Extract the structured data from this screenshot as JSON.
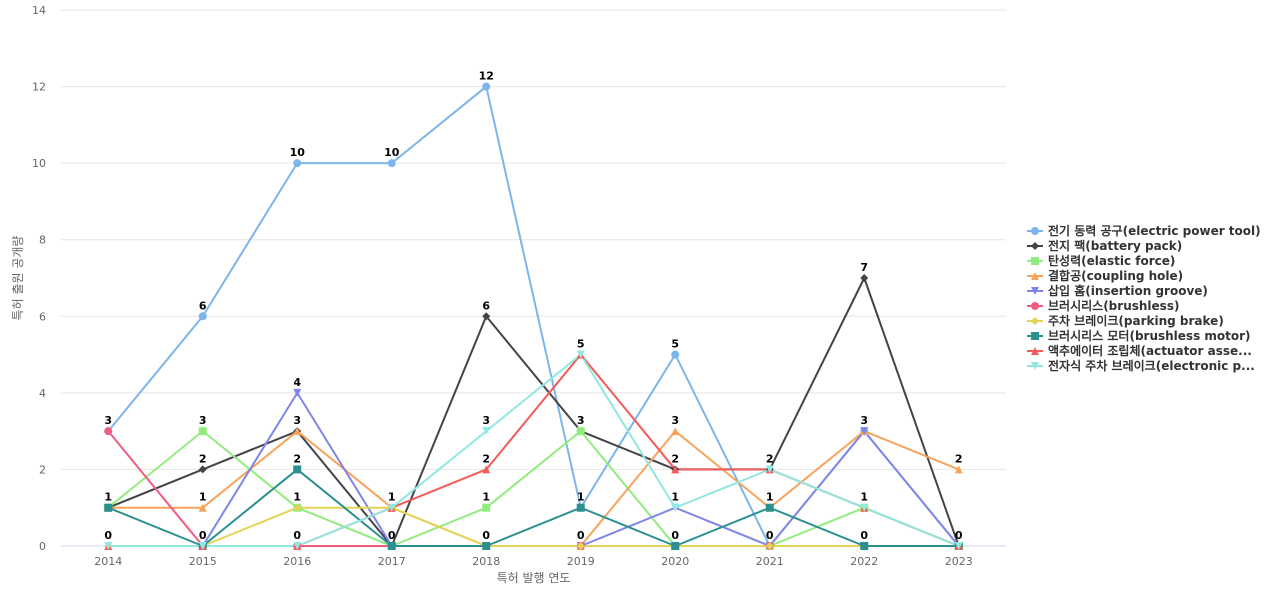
{
  "chart_data": {
    "type": "line",
    "title": "",
    "xlabel": "특허 발행 연도",
    "ylabel": "특허 출원 공개량",
    "ylim": [
      0,
      14
    ],
    "y_ticks": [
      0,
      2,
      4,
      6,
      8,
      10,
      12,
      14
    ],
    "grid": true,
    "legend_position": "right",
    "categories": [
      "2014",
      "2015",
      "2016",
      "2017",
      "2018",
      "2019",
      "2020",
      "2021",
      "2022",
      "2023"
    ],
    "series": [
      {
        "name": "전기 동력 공구(electric power tool)",
        "values": [
          3,
          6,
          10,
          10,
          12,
          1,
          5,
          0,
          3,
          0
        ],
        "color": "#7cb5ec",
        "marker": "circle"
      },
      {
        "name": "전지 팩(battery pack)",
        "values": [
          1,
          2,
          3,
          0,
          6,
          3,
          2,
          2,
          7,
          0
        ],
        "color": "#434348",
        "marker": "diamond"
      },
      {
        "name": "탄성력(elastic force)",
        "values": [
          1,
          3,
          1,
          0,
          1,
          3,
          0,
          0,
          1,
          0
        ],
        "color": "#90ed7d",
        "marker": "square"
      },
      {
        "name": "결합공(coupling hole)",
        "values": [
          1,
          1,
          3,
          1,
          0,
          0,
          3,
          1,
          3,
          2
        ],
        "color": "#f7a35c",
        "marker": "triangle"
      },
      {
        "name": "삽입 홈(insertion groove)",
        "values": [
          0,
          0,
          4,
          0,
          0,
          0,
          1,
          0,
          3,
          0
        ],
        "color": "#8085e9",
        "marker": "triangle-down"
      },
      {
        "name": "브러시리스(brushless)",
        "values": [
          3,
          0,
          0,
          0,
          0,
          0,
          0,
          0,
          0,
          0
        ],
        "color": "#f15c80",
        "marker": "circle"
      },
      {
        "name": "주차 브레이크(parking brake)",
        "values": [
          0,
          0,
          1,
          1,
          0,
          0,
          0,
          0,
          0,
          0
        ],
        "color": "#e4d354",
        "marker": "diamond"
      },
      {
        "name": "브러시리스 모터(brushless motor)",
        "values": [
          1,
          0,
          2,
          0,
          0,
          1,
          0,
          1,
          0,
          0
        ],
        "color": "#2b908f",
        "marker": "square"
      },
      {
        "name": "액추에이터 조립체(actuator assembly)",
        "values": [
          0,
          0,
          0,
          1,
          2,
          5,
          2,
          2,
          1,
          0
        ],
        "color": "#f45b5b",
        "marker": "triangle"
      },
      {
        "name": "전자식 주차 브레이크(electronic parking brake)",
        "values": [
          0,
          0,
          0,
          1,
          3,
          5,
          1,
          2,
          1,
          0
        ],
        "color": "#91e8e1",
        "marker": "triangle-down"
      }
    ],
    "point_labels": [
      {
        "x": "2014",
        "text": "3",
        "value": 3
      },
      {
        "x": "2014",
        "text": "1",
        "value": 1
      },
      {
        "x": "2014",
        "text": "0",
        "value": 0
      },
      {
        "x": "2015",
        "text": "6",
        "value": 6
      },
      {
        "x": "2015",
        "text": "3",
        "value": 3
      },
      {
        "x": "2015",
        "text": "2",
        "value": 2
      },
      {
        "x": "2015",
        "text": "1",
        "value": 1
      },
      {
        "x": "2015",
        "text": "0",
        "value": 0
      },
      {
        "x": "2016",
        "text": "10",
        "value": 10
      },
      {
        "x": "2016",
        "text": "4",
        "value": 4
      },
      {
        "x": "2016",
        "text": "3",
        "value": 3
      },
      {
        "x": "2016",
        "text": "2",
        "value": 2
      },
      {
        "x": "2016",
        "text": "1",
        "value": 1
      },
      {
        "x": "2016",
        "text": "0",
        "value": 0
      },
      {
        "x": "2017",
        "text": "10",
        "value": 10
      },
      {
        "x": "2017",
        "text": "1",
        "value": 1
      },
      {
        "x": "2017",
        "text": "0",
        "value": 0
      },
      {
        "x": "2018",
        "text": "12",
        "value": 12
      },
      {
        "x": "2018",
        "text": "6",
        "value": 6
      },
      {
        "x": "2018",
        "text": "3",
        "value": 3
      },
      {
        "x": "2018",
        "text": "2",
        "value": 2
      },
      {
        "x": "2018",
        "text": "1",
        "value": 1
      },
      {
        "x": "2018",
        "text": "0",
        "value": 0
      },
      {
        "x": "2019",
        "text": "5",
        "value": 5
      },
      {
        "x": "2019",
        "text": "3",
        "value": 3
      },
      {
        "x": "2019",
        "text": "1",
        "value": 1
      },
      {
        "x": "2019",
        "text": "0",
        "value": 0
      },
      {
        "x": "2020",
        "text": "5",
        "value": 5
      },
      {
        "x": "2020",
        "text": "3",
        "value": 3
      },
      {
        "x": "2020",
        "text": "2",
        "value": 2
      },
      {
        "x": "2020",
        "text": "1",
        "value": 1
      },
      {
        "x": "2020",
        "text": "0",
        "value": 0
      },
      {
        "x": "2021",
        "text": "2",
        "value": 2
      },
      {
        "x": "2021",
        "text": "1",
        "value": 1
      },
      {
        "x": "2021",
        "text": "0",
        "value": 0
      },
      {
        "x": "2022",
        "text": "7",
        "value": 7
      },
      {
        "x": "2022",
        "text": "3",
        "value": 3
      },
      {
        "x": "2022",
        "text": "1",
        "value": 1
      },
      {
        "x": "2022",
        "text": "0",
        "value": 0
      },
      {
        "x": "2023",
        "text": "2",
        "value": 2
      },
      {
        "x": "2023",
        "text": "0",
        "value": 0
      }
    ]
  }
}
